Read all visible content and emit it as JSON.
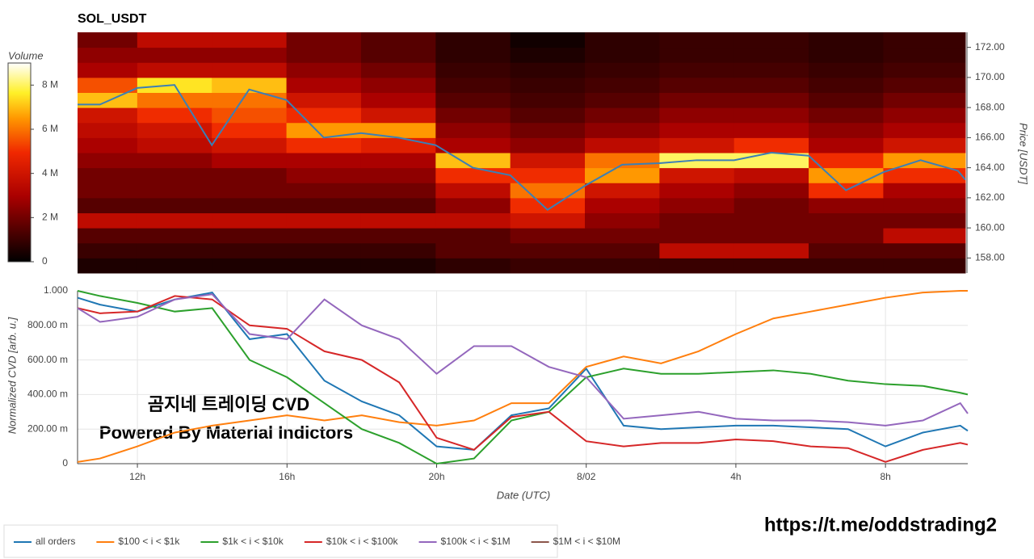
{
  "chart_data": [
    {
      "type": "heatmap",
      "title": "SOL_USDT",
      "x_bins": [
        10.4,
        12,
        14,
        16,
        18,
        20,
        22,
        24,
        26,
        28,
        30,
        32,
        34.2
      ],
      "y_bins": [
        157,
        158,
        159,
        160,
        161,
        162,
        163,
        164,
        165,
        166,
        167,
        168,
        169,
        170,
        171,
        172,
        173
      ],
      "z": [
        [
          0.5,
          0.5,
          0.5,
          0.5,
          0.5,
          0.8,
          1,
          1,
          1,
          1,
          1,
          1
        ],
        [
          1,
          1,
          1,
          1,
          1,
          1.5,
          1.5,
          1.5,
          3.5,
          3.5,
          1.5,
          1.5
        ],
        [
          1.5,
          1.5,
          1.5,
          1.5,
          1.5,
          1.5,
          2,
          2,
          2,
          2,
          2,
          3.5
        ],
        [
          3.5,
          3.5,
          3.5,
          3.5,
          3.5,
          3.5,
          4,
          2.5,
          2,
          2,
          2,
          2
        ],
        [
          1.5,
          1.5,
          1.5,
          1.5,
          1.5,
          2.5,
          5,
          3,
          2.5,
          2,
          2.5,
          2.5
        ],
        [
          2,
          2,
          2,
          2,
          2,
          3.5,
          6,
          4,
          3,
          2.5,
          5,
          3
        ],
        [
          2,
          2,
          2,
          2.5,
          2.5,
          5,
          5,
          6.5,
          4,
          3.5,
          6.5,
          5
        ],
        [
          2.5,
          2.5,
          3,
          3,
          3,
          7,
          4,
          6,
          8,
          8,
          5,
          6.5
        ],
        [
          3,
          3.5,
          4,
          5,
          4.5,
          3,
          2.5,
          3.5,
          4,
          5,
          3,
          4
        ],
        [
          3.5,
          4,
          5,
          6.5,
          6.5,
          2.5,
          2,
          2.5,
          3,
          3,
          2.5,
          3
        ],
        [
          4,
          5,
          5.5,
          5,
          4,
          2,
          1.5,
          2,
          2.5,
          2.5,
          2,
          2.5
        ],
        [
          7,
          6,
          6,
          4,
          3,
          1.5,
          1.2,
          1.5,
          2,
          2,
          1.5,
          2
        ],
        [
          5.5,
          7.5,
          7,
          3,
          2.5,
          1.2,
          1,
          1.2,
          1.5,
          1.5,
          1.2,
          1.5
        ],
        [
          3,
          3.5,
          3.5,
          2.5,
          2,
          1,
          0.8,
          1,
          1.2,
          1.2,
          1,
          1.2
        ],
        [
          2.5,
          2.5,
          2.5,
          2,
          1.5,
          0.8,
          0.5,
          0.8,
          1,
          1,
          0.8,
          1
        ],
        [
          2,
          3.5,
          3.5,
          2,
          1.5,
          0.8,
          0.3,
          0.8,
          1,
          1,
          0.8,
          1
        ]
      ],
      "zlim": [
        0,
        9
      ],
      "colorbar_title": "Volume",
      "colorbar_ticks": [
        0,
        {
          "value": 2,
          "label": "2 M"
        },
        {
          "value": 4,
          "label": "4 M"
        },
        {
          "value": 6,
          "label": "6 M"
        },
        {
          "value": 8,
          "label": "8 M"
        }
      ],
      "xlim": [
        10.4,
        34.2
      ],
      "ylim": [
        157,
        173
      ],
      "y_label": "Price [USDT]",
      "yticks": [
        {
          "value": 158,
          "label": "158.00"
        },
        {
          "value": 160,
          "label": "160.00"
        },
        {
          "value": 162,
          "label": "162.00"
        },
        {
          "value": 164,
          "label": "164.00"
        },
        {
          "value": 166,
          "label": "166.00"
        },
        {
          "value": 168,
          "label": "168.00"
        },
        {
          "value": 170,
          "label": "170.00"
        },
        {
          "value": 172,
          "label": "172.00"
        }
      ],
      "x": [
        10.4,
        11,
        12,
        13,
        14,
        15,
        16,
        17,
        18,
        19,
        20,
        21,
        22,
        23,
        24,
        25,
        26,
        27,
        28,
        29,
        30,
        31,
        32,
        33,
        34,
        34.2
      ],
      "price": {
        "color": "#3b7fb6",
        "values": [
          168.2,
          168.2,
          169.3,
          169.5,
          165.5,
          169.2,
          168.5,
          166,
          166.3,
          166,
          165.5,
          164,
          163.5,
          161.2,
          162.8,
          164.2,
          164.3,
          164.5,
          164.5,
          165,
          164.8,
          162.5,
          163.7,
          164.5,
          163.8,
          163.2
        ]
      }
    },
    {
      "type": "line",
      "x": [
        10.4,
        11,
        12,
        13,
        14,
        15,
        16,
        17,
        18,
        19,
        20,
        21,
        22,
        23,
        24,
        25,
        26,
        27,
        28,
        29,
        30,
        31,
        32,
        33,
        34,
        34.2
      ],
      "xlim": [
        10.4,
        34.2
      ],
      "ylim": [
        0,
        1
      ],
      "xticks": [
        {
          "value": 12,
          "label": "12h"
        },
        {
          "value": 16,
          "label": "16h"
        },
        {
          "value": 20,
          "label": "20h"
        },
        {
          "value": 24,
          "label": "8/02"
        },
        {
          "value": 28,
          "label": "4h"
        },
        {
          "value": 32,
          "label": "8h"
        }
      ],
      "yticks": [
        0,
        {
          "value": 0.2,
          "label": "200.00 m"
        },
        {
          "value": 0.4,
          "label": "400.00 m"
        },
        {
          "value": 0.6,
          "label": "600.00 m"
        },
        {
          "value": 0.8,
          "label": "800.00 m"
        },
        {
          "value": 1,
          "label": "1.000"
        }
      ],
      "x_label": "Date (UTC)",
      "y_label": "Normalized CVD [arb. u.]",
      "grid": true,
      "series": [
        {
          "name": "all orders",
          "color": "#1f77b4",
          "values": [
            0.96,
            0.92,
            0.88,
            0.95,
            0.99,
            0.72,
            0.75,
            0.48,
            0.36,
            0.28,
            0.1,
            0.08,
            0.28,
            0.32,
            0.55,
            0.22,
            0.2,
            0.21,
            0.22,
            0.22,
            0.21,
            0.2,
            0.1,
            0.18,
            0.22,
            0.19
          ]
        },
        {
          "name": "$100 < i < $1k",
          "color": "#ff7f0e",
          "values": [
            0.01,
            0.03,
            0.1,
            0.18,
            0.22,
            0.25,
            0.28,
            0.25,
            0.28,
            0.24,
            0.22,
            0.25,
            0.35,
            0.35,
            0.56,
            0.62,
            0.58,
            0.65,
            0.75,
            0.84,
            0.88,
            0.92,
            0.96,
            0.99,
            1,
            1
          ]
        },
        {
          "name": "$1k < i < $10k",
          "color": "#2ca02c",
          "values": [
            1,
            0.97,
            0.93,
            0.88,
            0.9,
            0.6,
            0.5,
            0.35,
            0.2,
            0.12,
            0,
            0.03,
            0.25,
            0.3,
            0.5,
            0.55,
            0.52,
            0.52,
            0.53,
            0.54,
            0.52,
            0.48,
            0.46,
            0.45,
            0.41,
            0.4
          ]
        },
        {
          "name": "$10k < i < $100k",
          "color": "#d62728",
          "values": [
            0.9,
            0.87,
            0.88,
            0.97,
            0.95,
            0.8,
            0.78,
            0.65,
            0.6,
            0.47,
            0.15,
            0.08,
            0.27,
            0.3,
            0.13,
            0.1,
            0.12,
            0.12,
            0.14,
            0.13,
            0.1,
            0.09,
            0.01,
            0.08,
            0.12,
            0.11
          ]
        },
        {
          "name": "$100k < i < $1M",
          "color": "#9467bd",
          "values": [
            0.9,
            0.82,
            0.85,
            0.95,
            0.98,
            0.75,
            0.72,
            0.95,
            0.8,
            0.72,
            0.52,
            0.68,
            0.68,
            0.56,
            0.5,
            0.26,
            0.28,
            0.3,
            0.26,
            0.25,
            0.25,
            0.24,
            0.22,
            0.25,
            0.35,
            0.29
          ]
        },
        {
          "name": "$1M < i < $10M",
          "color": "#8c564b",
          "values": [
            null,
            null,
            null,
            null,
            null,
            null,
            null,
            null,
            null,
            null,
            null,
            null,
            null,
            null,
            null,
            null,
            null,
            null,
            null,
            null,
            null,
            null,
            null,
            null,
            null,
            null
          ]
        }
      ]
    }
  ],
  "annotations": {
    "watermark_title": "곰지네 트레이딩 CVD",
    "watermark_subtitle": "Powered By Material Indictors",
    "link": "https://t.me/oddstrading2"
  }
}
